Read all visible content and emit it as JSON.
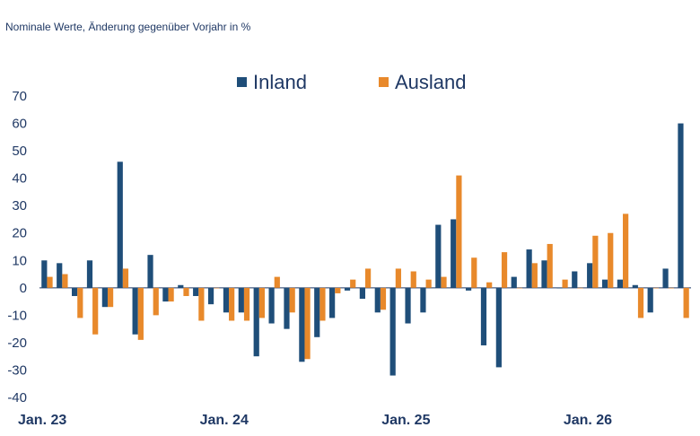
{
  "subtitle": "Nominale Werte, Änderung gegenüber Vorjahr in %",
  "colors": {
    "inland": "#1f4e79",
    "ausland": "#e8892b",
    "text": "#1f3864"
  },
  "chart_data": {
    "type": "bar",
    "title": "",
    "xlabel": "",
    "ylabel": "",
    "ylim": [
      -40,
      70
    ],
    "yticks": [
      -40,
      -30,
      -20,
      -10,
      0,
      10,
      20,
      30,
      40,
      50,
      60,
      70
    ],
    "ytick_labels": [
      "-40",
      "-30",
      "-20",
      "-10",
      "0",
      "10",
      "20",
      "30",
      "40",
      "50",
      "60",
      "70"
    ],
    "grid": false,
    "legend": "top-center",
    "x_tick_labels": [
      {
        "label": "Jan. 23",
        "index": 0
      },
      {
        "label": "Jan. 24",
        "index": 12
      },
      {
        "label": "Jan. 25",
        "index": 24
      },
      {
        "label": "Jan. 26",
        "index": 36
      }
    ],
    "x": [
      "2023-01",
      "2023-02",
      "2023-03",
      "2023-04",
      "2023-05",
      "2023-06",
      "2023-07",
      "2023-08",
      "2023-09",
      "2023-10",
      "2023-11",
      "2023-12",
      "2024-01",
      "2024-02",
      "2024-03",
      "2024-04",
      "2024-05",
      "2024-06",
      "2024-07",
      "2024-08",
      "2024-09",
      "2024-10",
      "2024-11",
      "2024-12",
      "2025-01",
      "2025-02",
      "2025-03",
      "2025-04",
      "2025-05",
      "2025-06",
      "2025-07",
      "2025-08",
      "2025-09",
      "2025-10",
      "2025-11",
      "2025-12",
      "2026-01",
      "2026-02",
      "2026-03",
      "2026-04",
      "2026-05",
      "2026-06",
      "2026-07"
    ],
    "series": [
      {
        "name": "Inland",
        "values": [
          10,
          9,
          -3,
          10,
          -7,
          46,
          -17,
          12,
          -5,
          1,
          -3,
          -6,
          -9,
          -9,
          -25,
          -13,
          -15,
          -27,
          -18,
          -11,
          -1,
          -4,
          -9,
          -32,
          -13,
          -9,
          23,
          25,
          -1,
          -21,
          -29,
          4,
          14,
          10,
          0,
          6,
          9,
          3,
          3,
          1,
          -9,
          7,
          60
        ]
      },
      {
        "name": "Ausland",
        "values": [
          4,
          5,
          -11,
          -17,
          -7,
          7,
          -19,
          -10,
          -5,
          -3,
          -12,
          0,
          -12,
          -12,
          -11,
          4,
          -9,
          -26,
          -12,
          -2,
          3,
          7,
          -8,
          7,
          6,
          3,
          4,
          41,
          11,
          2,
          13,
          0,
          9,
          16,
          3,
          0,
          19,
          20,
          27,
          -11,
          0,
          0,
          -11
        ]
      }
    ]
  }
}
